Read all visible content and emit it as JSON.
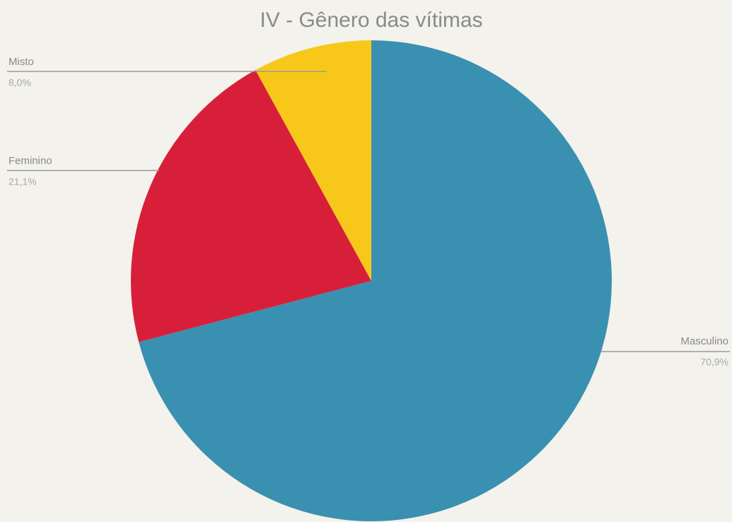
{
  "chart_data": {
    "type": "pie",
    "title": "IV - Gênero das vítimas",
    "categories": [
      "Masculino",
      "Feminino",
      "Misto"
    ],
    "values": [
      70.9,
      21.1,
      8.0
    ],
    "value_labels": [
      "70,9%",
      "21,1%",
      "8,0%"
    ],
    "colors": [
      "#3a90b0",
      "#d81f3a",
      "#f7c81a"
    ]
  }
}
